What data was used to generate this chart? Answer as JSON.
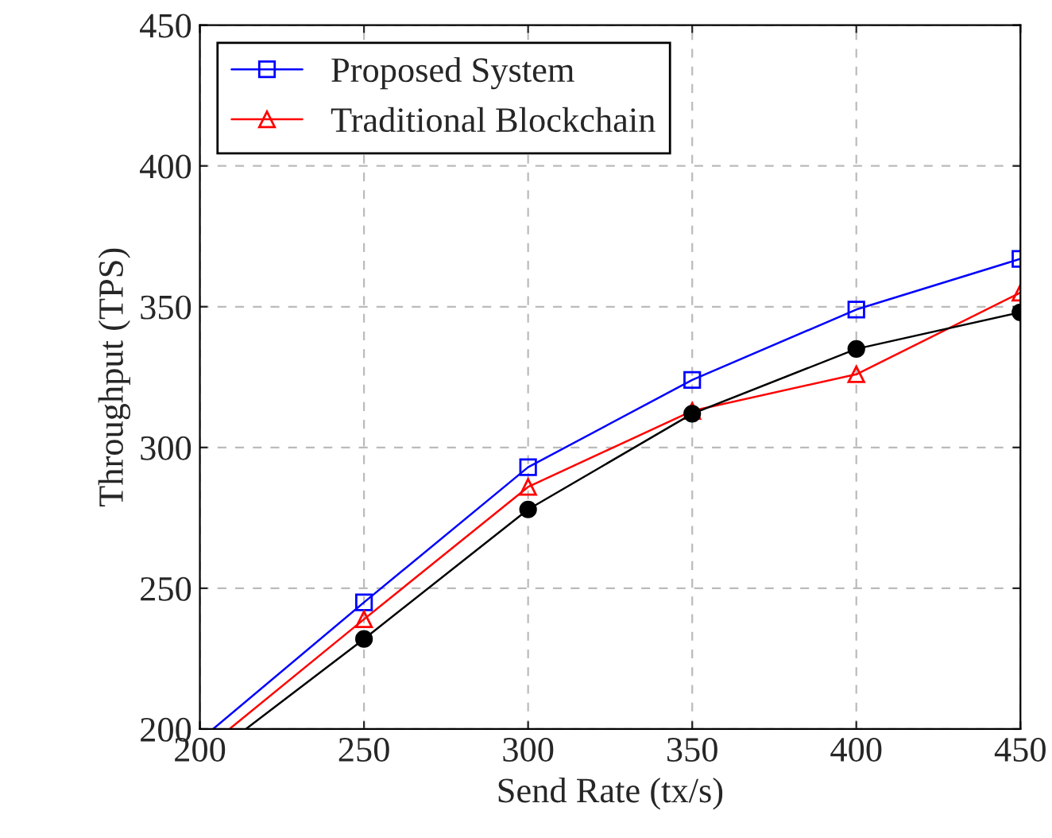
{
  "chart_data": {
    "type": "line",
    "xlabel": "Send Rate (tx/s)",
    "ylabel": "Throughput (TPS)",
    "series": [
      {
        "name": "Proposed System",
        "color": "#0000ff",
        "marker": "square",
        "x": [
          204,
          250,
          300,
          350,
          400,
          450
        ],
        "values": [
          200,
          245,
          293,
          324,
          349,
          367
        ]
      },
      {
        "name": "Traditional Blockchain",
        "color": "#ff0000",
        "marker": "triangle",
        "x": [
          209,
          250,
          300,
          350,
          400,
          450
        ],
        "values": [
          200,
          239,
          286,
          313,
          326,
          355
        ]
      },
      {
        "color": "#000000",
        "marker": "circle",
        "x": [
          214,
          250,
          300,
          350,
          400,
          450
        ],
        "values": [
          200,
          232,
          278,
          312,
          335,
          348
        ]
      }
    ],
    "xlim": [
      200,
      450
    ],
    "ylim": [
      200,
      450
    ],
    "xticks": [
      200,
      250,
      300,
      350,
      400,
      450
    ],
    "yticks": [
      200,
      250,
      300,
      350,
      400,
      450
    ],
    "grid": true,
    "legend": "top left",
    "line_style": "solid"
  }
}
